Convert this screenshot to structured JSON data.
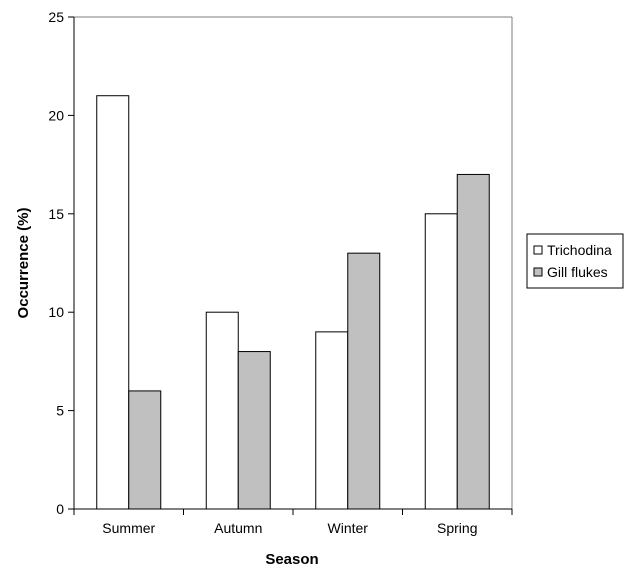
{
  "chart_data": {
    "type": "bar",
    "title": "",
    "xlabel": "Season",
    "ylabel": "Occurrence (%)",
    "categories": [
      "Summer",
      "Autumn",
      "Winter",
      "Spring"
    ],
    "series": [
      {
        "name": "Trichodina",
        "values": [
          21,
          10,
          9,
          15
        ],
        "color": "#ffffff"
      },
      {
        "name": "Gill flukes",
        "values": [
          6,
          8,
          13,
          17
        ],
        "color": "#c0c0c0"
      }
    ],
    "ylim": [
      0,
      25
    ],
    "yticks": [
      "0",
      "5",
      "10",
      "15",
      "20",
      "25"
    ],
    "grid": false,
    "legend_position": "right"
  }
}
